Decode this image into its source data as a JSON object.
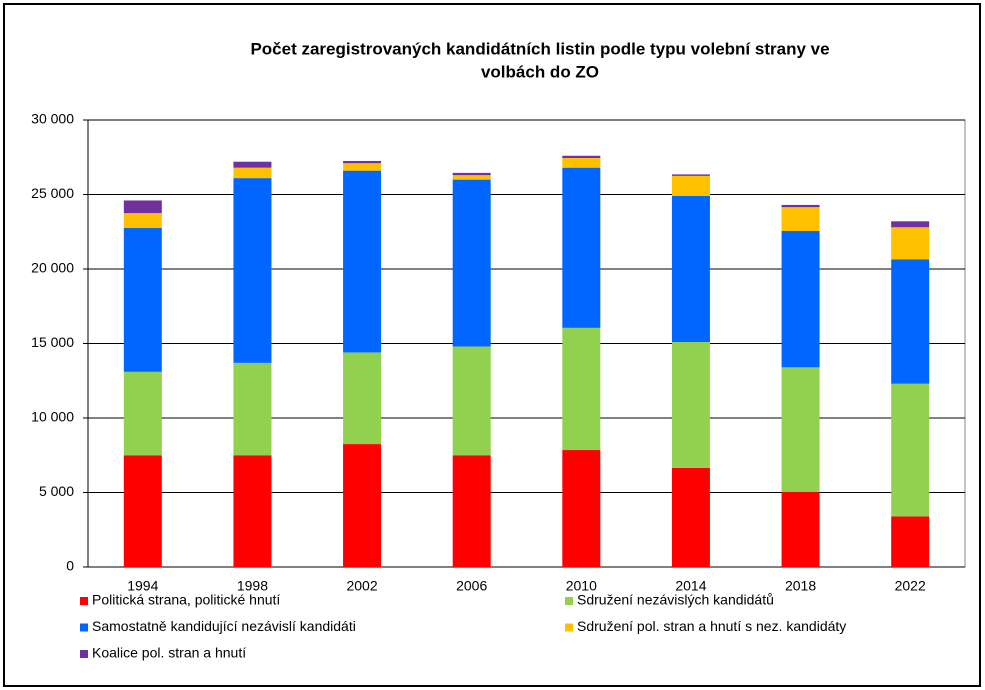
{
  "chart_data": {
    "type": "stacked_bar",
    "title": [
      "Počet zaregistrovaných kandidátních listin podle typu volební strany ve",
      "volbách do ZO"
    ],
    "categories": [
      "1994",
      "1998",
      "2002",
      "2006",
      "2010",
      "2014",
      "2018",
      "2022"
    ],
    "series": [
      {
        "name": "Politická strana, politické hnutí",
        "color": "#ff0000",
        "values": [
          7500,
          7500,
          8250,
          7500,
          7850,
          6650,
          5050,
          3400
        ]
      },
      {
        "name": "Sdružení nezávislých kandidátů",
        "color": "#92d050",
        "values": [
          5600,
          6200,
          6150,
          7300,
          8200,
          8450,
          8350,
          8900
        ]
      },
      {
        "name": "Samostatně kandidující nezávislí kandidáti",
        "color": "#0066ff",
        "values": [
          9650,
          12400,
          12200,
          11200,
          10750,
          9800,
          9150,
          8350
        ]
      },
      {
        "name": "Sdružení pol. stran a hnutí s nez. kandidáty",
        "color": "#ffc000",
        "values": [
          1000,
          700,
          500,
          300,
          650,
          1350,
          1600,
          2150
        ]
      },
      {
        "name": "Koalice pol. stran a hnutí",
        "color": "#7030a0",
        "values": [
          850,
          400,
          150,
          150,
          150,
          100,
          150,
          400
        ]
      }
    ],
    "ylim": [
      0,
      30000
    ],
    "yticks": [
      0,
      {
        "value": 5000,
        "label": "5 000"
      },
      {
        "value": 10000,
        "label": "10 000"
      },
      {
        "value": 15000,
        "label": "15 000"
      },
      {
        "value": 20000,
        "label": "20 000"
      },
      {
        "value": 25000,
        "label": "25 000"
      },
      {
        "value": 30000,
        "label": "30 000"
      }
    ],
    "grid": true
  }
}
